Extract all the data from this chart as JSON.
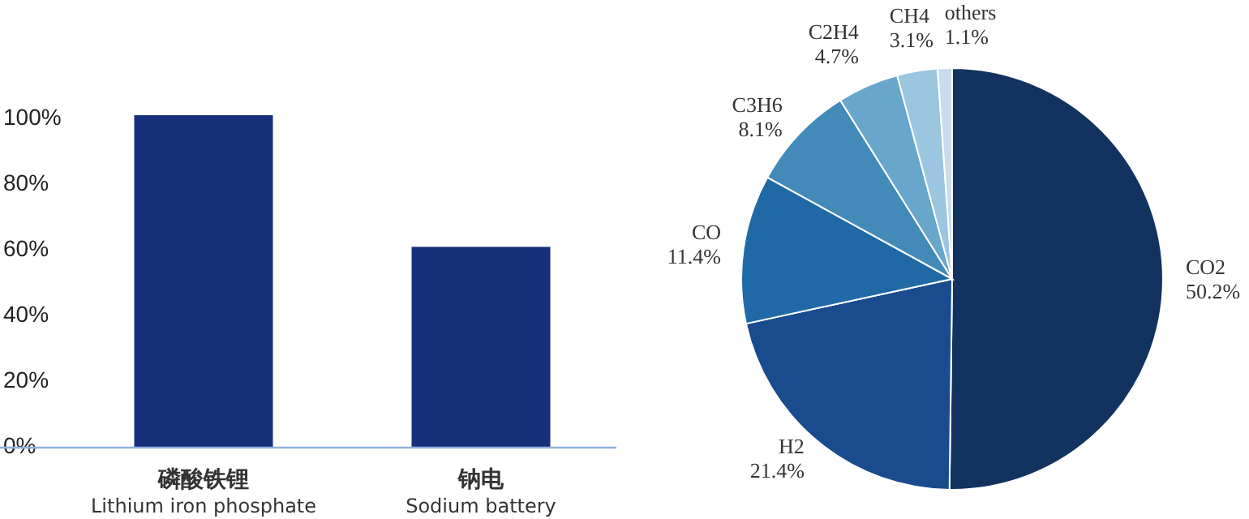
{
  "chart_data": [
    {
      "type": "bar",
      "categories": [
        "磷酸铁锂\nLithium iron phosphate",
        "钠电\nSodium battery"
      ],
      "values": [
        101,
        61
      ],
      "color": "#162f7a",
      "ylim": [
        0,
        136
      ],
      "yticks": [
        {
          "value": 0,
          "label": "0%"
        },
        {
          "value": 20,
          "label": "20%"
        },
        {
          "value": 40,
          "label": "40%"
        },
        {
          "value": 60,
          "label": "60%"
        },
        {
          "value": 80,
          "label": "80%"
        },
        {
          "value": 100,
          "label": "100%"
        }
      ],
      "grid": false
    },
    {
      "type": "pie",
      "categories": [
        "CO2",
        "H2",
        "CO",
        "C3H6",
        "C2H4",
        "CH4",
        "others"
      ],
      "values": [
        50.2,
        21.4,
        11.4,
        8.1,
        4.7,
        3.1,
        1.1
      ],
      "colors": [
        "#12325f",
        "#1a4b8f",
        "#1f6aa6",
        "#428ab8",
        "#69a6cc",
        "#9cc5df",
        "#c8dcee"
      ],
      "value_labels": [
        "50.2%",
        "21.4%",
        "11.4%",
        "8.1%",
        "4.7%",
        "3.1%",
        "1.1%"
      ]
    }
  ]
}
